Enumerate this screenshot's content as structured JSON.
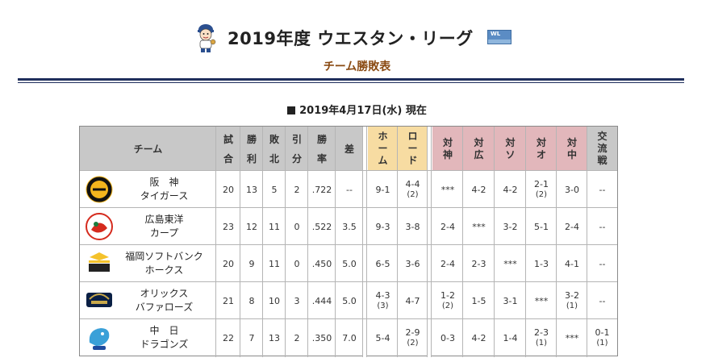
{
  "header": {
    "title": "2019年度 ウエスタン・リーグ",
    "logo_text": "WL",
    "subtitle": "チーム勝敗表"
  },
  "date": "2019年4月17日(水) 現在",
  "columns": {
    "team": "チーム",
    "games": [
      "試",
      "合"
    ],
    "wins": [
      "勝",
      "利"
    ],
    "losses": [
      "敗",
      "北"
    ],
    "draws": [
      "引",
      "分"
    ],
    "pct": [
      "勝",
      "率"
    ],
    "gb": "差",
    "home": [
      "ホ",
      "ー",
      "ム"
    ],
    "road": [
      "ロ",
      "ー",
      "ド"
    ],
    "vs": [
      [
        "対",
        "神"
      ],
      [
        "対",
        "広"
      ],
      [
        "対",
        "ソ"
      ],
      [
        "対",
        "オ"
      ],
      [
        "対",
        "中"
      ]
    ],
    "inter": [
      "交",
      "流",
      "戦"
    ]
  },
  "teams": [
    {
      "name": [
        "阪　神",
        "タイガース"
      ],
      "logo": "tigers-logo",
      "color": "#1a1a1a",
      "games": "20",
      "wins": "13",
      "losses": "5",
      "draws": "2",
      "pct": ".722",
      "gb": "--",
      "home": [
        "9-1",
        ""
      ],
      "road": [
        "4-4",
        "(2)"
      ],
      "vs": [
        [
          "***",
          ""
        ],
        [
          "4-2",
          ""
        ],
        [
          "4-2",
          ""
        ],
        [
          "2-1",
          "(2)"
        ],
        [
          "3-0",
          ""
        ]
      ],
      "inter": [
        "--",
        ""
      ]
    },
    {
      "name": [
        "広島東洋",
        "カープ"
      ],
      "logo": "carp-logo",
      "color": "#d52b1e",
      "games": "23",
      "wins": "12",
      "losses": "11",
      "draws": "0",
      "pct": ".522",
      "gb": "3.5",
      "home": [
        "9-3",
        ""
      ],
      "road": [
        "3-8",
        ""
      ],
      "vs": [
        [
          "2-4",
          ""
        ],
        [
          "***",
          ""
        ],
        [
          "3-2",
          ""
        ],
        [
          "5-1",
          ""
        ],
        [
          "2-4",
          ""
        ]
      ],
      "inter": [
        "--",
        ""
      ]
    },
    {
      "name": [
        "福岡ソフトバンク",
        "ホークス"
      ],
      "logo": "hawks-logo",
      "color": "#f4c22b",
      "games": "20",
      "wins": "9",
      "losses": "11",
      "draws": "0",
      "pct": ".450",
      "gb": "5.0",
      "home": [
        "6-5",
        ""
      ],
      "road": [
        "3-6",
        ""
      ],
      "vs": [
        [
          "2-4",
          ""
        ],
        [
          "2-3",
          ""
        ],
        [
          "***",
          ""
        ],
        [
          "1-3",
          ""
        ],
        [
          "4-1",
          ""
        ]
      ],
      "inter": [
        "--",
        ""
      ]
    },
    {
      "name": [
        "オリックス",
        "バファローズ"
      ],
      "logo": "buffaloes-logo",
      "color": "#0a1f44",
      "games": "21",
      "wins": "8",
      "losses": "10",
      "draws": "3",
      "pct": ".444",
      "gb": "5.0",
      "home": [
        "4-3",
        "(3)"
      ],
      "road": [
        "4-7",
        ""
      ],
      "vs": [
        [
          "1-2",
          "(2)"
        ],
        [
          "1-5",
          ""
        ],
        [
          "3-1",
          ""
        ],
        [
          "***",
          ""
        ],
        [
          "3-2",
          "(1)"
        ]
      ],
      "inter": [
        "--",
        ""
      ]
    },
    {
      "name": [
        "中　日",
        "ドラゴンズ"
      ],
      "logo": "dragons-logo",
      "color": "#3aa0d8",
      "games": "22",
      "wins": "7",
      "losses": "13",
      "draws": "2",
      "pct": ".350",
      "gb": "7.0",
      "home": [
        "5-4",
        ""
      ],
      "road": [
        "2-9",
        "(2)"
      ],
      "vs": [
        [
          "0-3",
          ""
        ],
        [
          "4-2",
          ""
        ],
        [
          "1-4",
          ""
        ],
        [
          "2-3",
          "(1)"
        ],
        [
          "***",
          ""
        ]
      ],
      "inter": [
        "0-1",
        "(1)"
      ]
    }
  ]
}
